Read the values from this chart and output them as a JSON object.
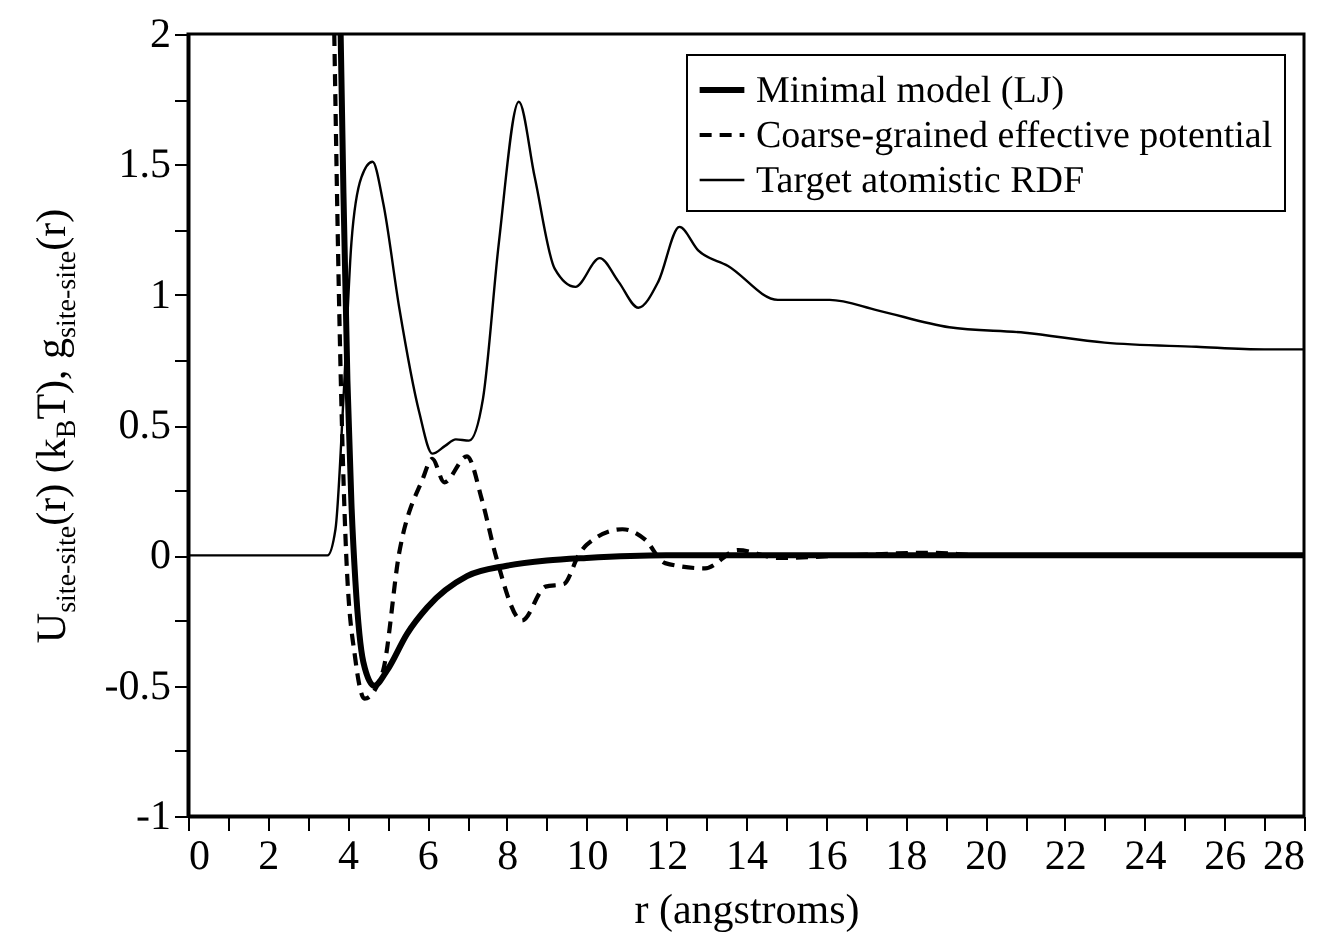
{
  "chart_data": {
    "type": "line",
    "xlabel": "r (angstroms)",
    "ylabel": "U$_{site-site}$(r)  (k$_{B}$T),  g$_{site-site}$(r)",
    "xlim": [
      0,
      28
    ],
    "ylim": [
      -1,
      2
    ],
    "xticks": [
      0,
      {
        "value": 1,
        "label": null
      },
      2,
      {
        "value": 3,
        "label": null
      },
      4,
      {
        "value": 5,
        "label": null
      },
      6,
      {
        "value": 7,
        "label": null
      },
      8,
      {
        "value": 9,
        "label": null
      },
      10,
      {
        "value": 11,
        "label": null
      },
      12,
      {
        "value": 13,
        "label": null
      },
      14,
      {
        "value": 15,
        "label": null
      },
      16,
      {
        "value": 17,
        "label": null
      },
      18,
      {
        "value": 19,
        "label": null
      },
      20,
      {
        "value": 21,
        "label": null
      },
      22,
      {
        "value": 23,
        "label": null
      },
      24,
      {
        "value": 25,
        "label": null
      },
      26,
      {
        "value": 27,
        "label": null
      },
      28
    ],
    "yticks": [
      -1,
      {
        "value": -0.75,
        "label": null
      },
      -0.5,
      {
        "value": -0.25,
        "label": null
      },
      0,
      {
        "value": 0.25,
        "label": null
      },
      0.5,
      {
        "value": 0.75,
        "label": null
      },
      1,
      {
        "value": 1.25,
        "label": null
      },
      1.5,
      {
        "value": 1.75,
        "label": null
      },
      2
    ],
    "legend": "top right",
    "grid": false,
    "marker": "none",
    "series": [
      {
        "name": "Minimal model (LJ)",
        "color": "#000000",
        "line_style": "solid",
        "x": [
          3.83,
          3.9,
          4.0,
          4.1,
          4.2,
          4.4,
          4.67,
          5.0,
          5.5,
          6.0,
          7.0,
          8.0,
          9.0,
          10.0,
          12.0,
          28.0
        ],
        "values": [
          2.0,
          1.39,
          0.67,
          0.2,
          -0.1,
          -0.41,
          -0.5,
          -0.44,
          -0.3,
          -0.2,
          -0.08,
          -0.04,
          -0.02,
          -0.01,
          0.0,
          0.0
        ]
      },
      {
        "name": "Coarse-grained effective potential",
        "color": "#000000",
        "line_style": "dashed",
        "x": [
          3.67,
          3.8,
          3.97,
          4.2,
          4.43,
          4.88,
          5.3,
          5.88,
          6.13,
          6.43,
          7.0,
          7.38,
          7.72,
          8.38,
          8.97,
          9.43,
          9.8,
          10.0,
          10.9,
          11.47,
          11.97,
          12.97,
          13.8,
          14.8,
          16.6,
          18.6,
          20.0,
          28.0
        ],
        "values": [
          2.0,
          0.9,
          0.0,
          -0.4,
          -0.55,
          -0.45,
          0.01,
          0.29,
          0.37,
          0.28,
          0.38,
          0.21,
          0.0,
          -0.25,
          -0.12,
          -0.11,
          0.0,
          0.04,
          0.1,
          0.06,
          -0.03,
          -0.05,
          0.02,
          -0.01,
          0.0,
          0.01,
          0.0,
          0.0
        ]
      },
      {
        "name": "Target atomistic RDF",
        "color": "#000000",
        "line_style": "solid",
        "x": [
          0,
          3.5,
          3.7,
          3.9,
          4.1,
          4.35,
          4.63,
          4.9,
          5.3,
          5.8,
          6.13,
          6.45,
          6.72,
          7.05,
          7.4,
          7.8,
          8.3,
          8.7,
          9.2,
          9.72,
          10.33,
          10.8,
          11.3,
          11.8,
          12.33,
          12.8,
          13.55,
          14.8,
          16.1,
          17.3,
          19.1,
          21.0,
          23.0,
          25.3,
          27.0,
          28.0
        ],
        "values": [
          0,
          0,
          0.1,
          0.6,
          1.2,
          1.45,
          1.51,
          1.35,
          0.95,
          0.55,
          0.39,
          0.42,
          0.445,
          0.44,
          0.6,
          1.2,
          1.74,
          1.45,
          1.1,
          1.03,
          1.14,
          1.05,
          0.95,
          1.05,
          1.26,
          1.17,
          1.11,
          0.98,
          0.98,
          0.94,
          0.875,
          0.854,
          0.816,
          0.8,
          0.79,
          0.79
        ]
      }
    ]
  }
}
